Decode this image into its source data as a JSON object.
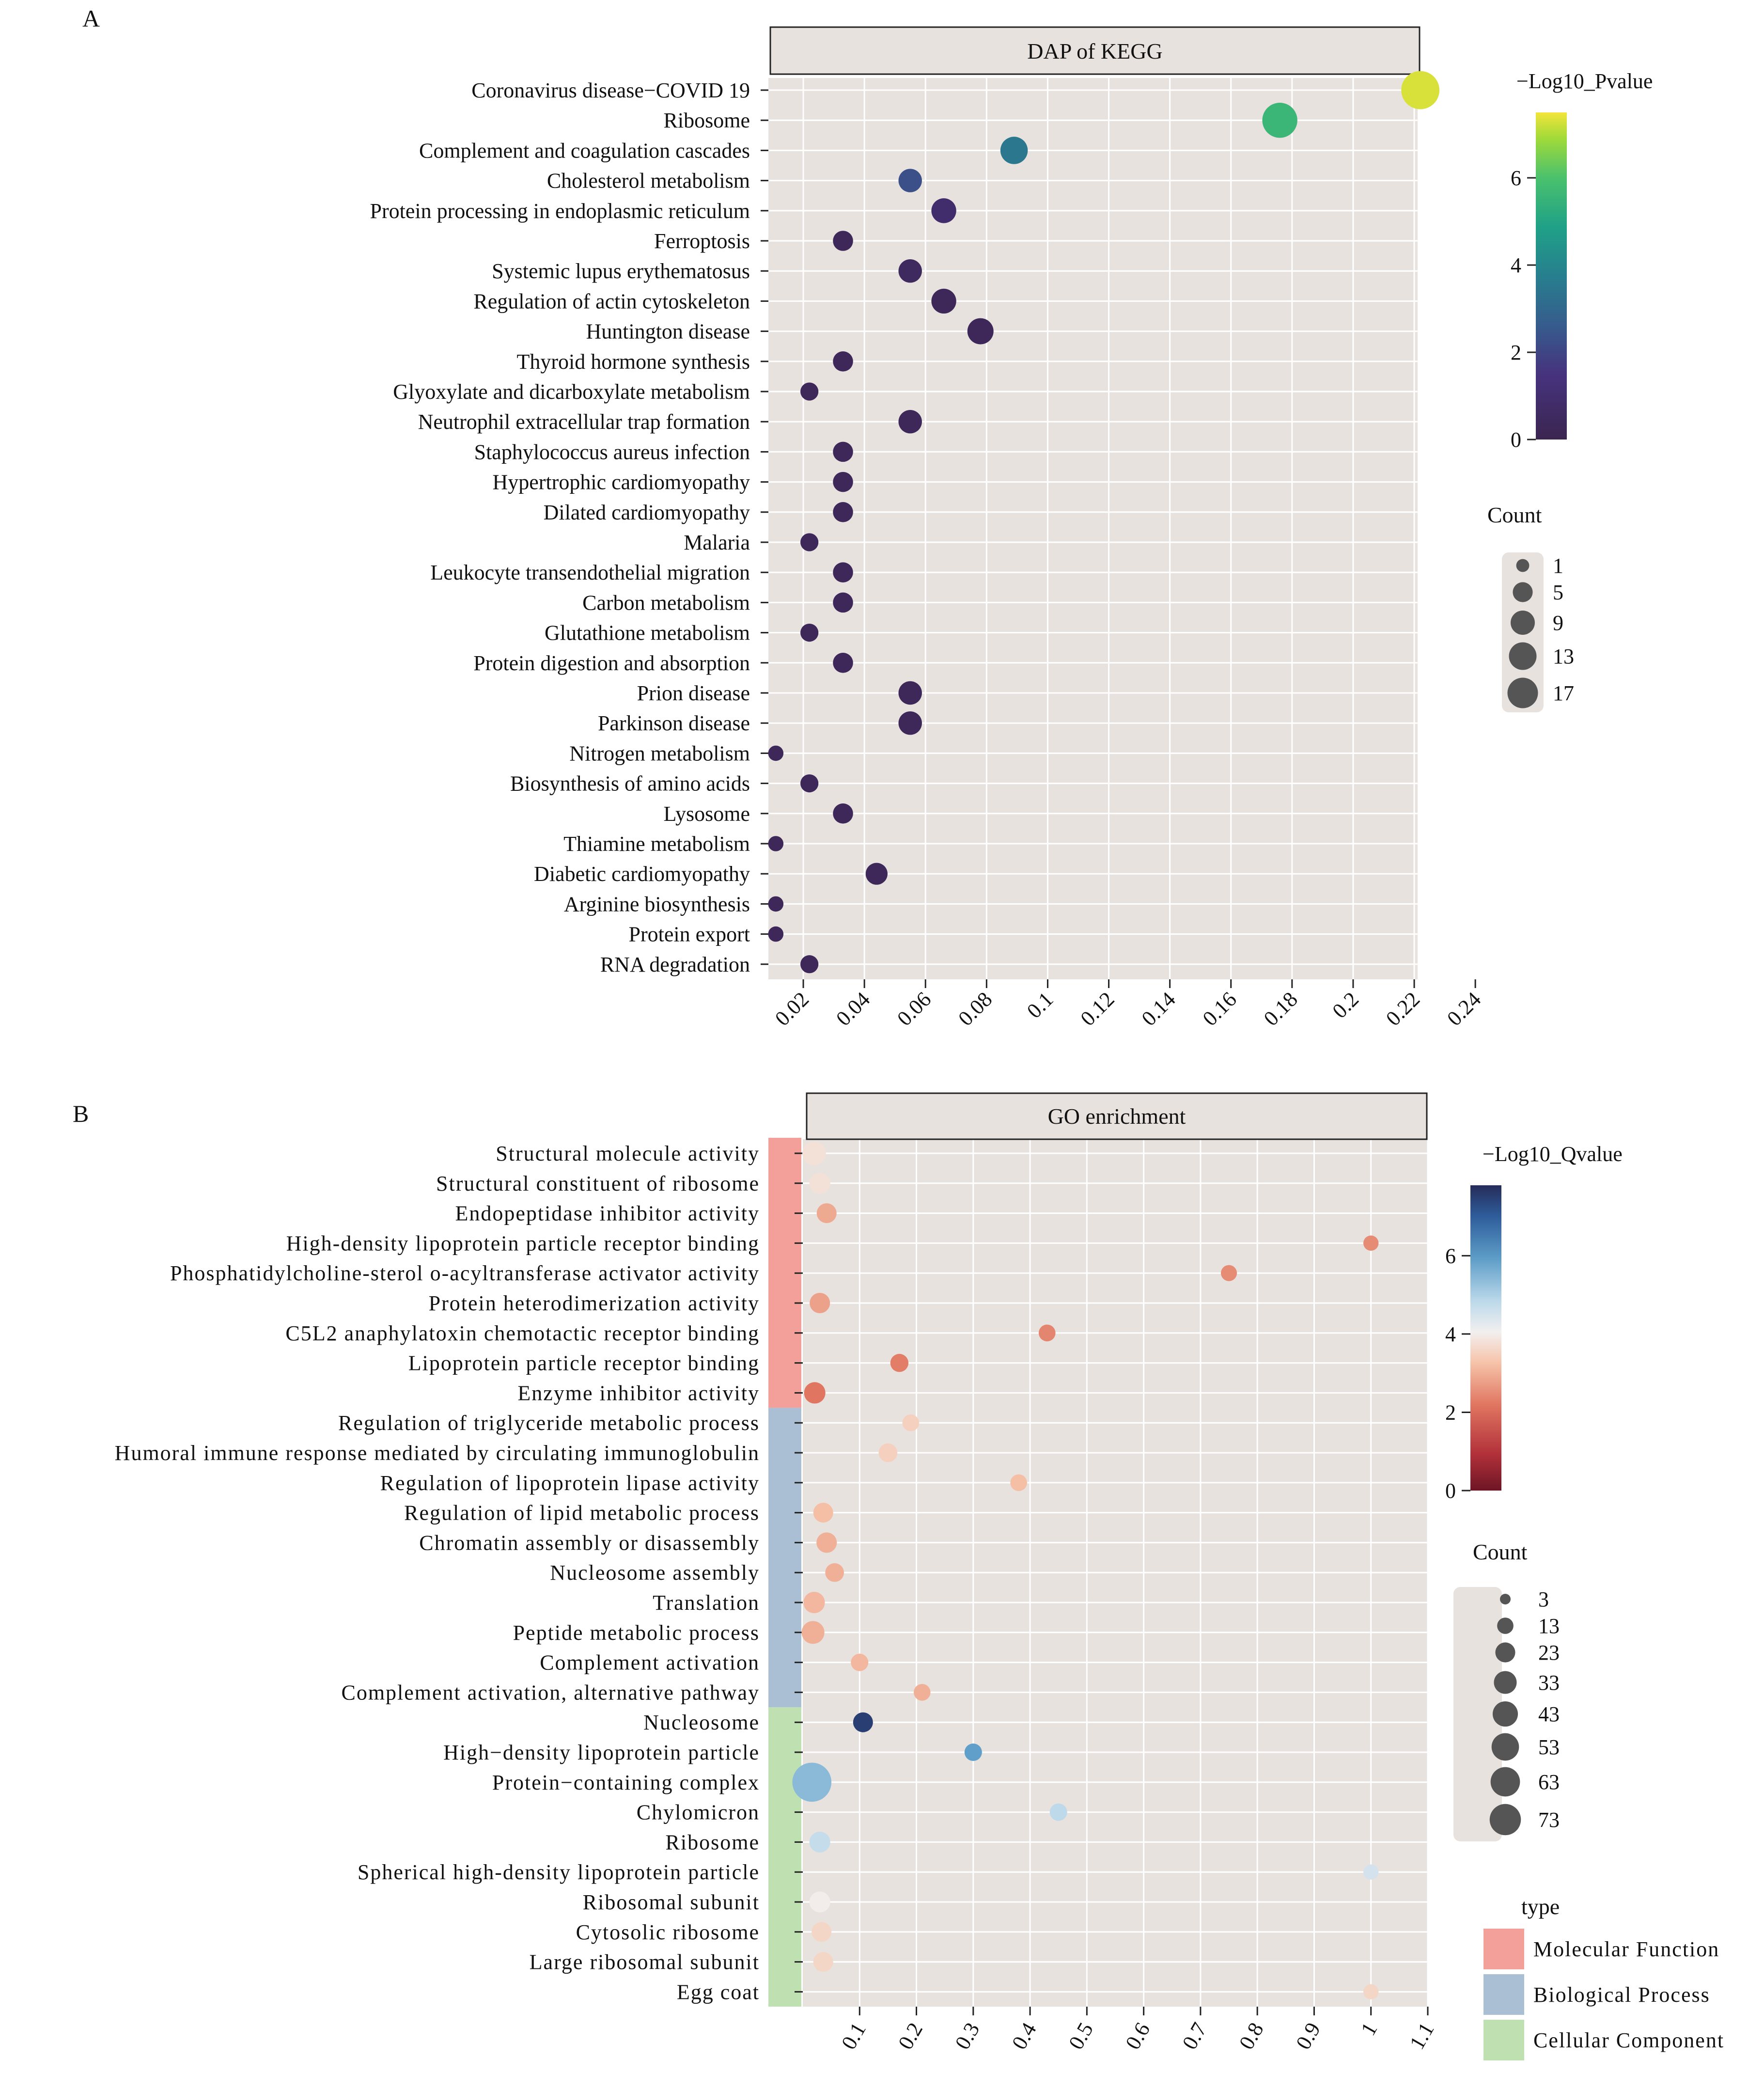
{
  "chart_data": [
    {
      "panel_label": "A",
      "type": "scatter",
      "title": "DAP of KEGG",
      "xlabel": "",
      "ylabel": "",
      "xlim": [
        0.01,
        0.24
      ],
      "xticks": [
        0.02,
        0.04,
        0.06,
        0.08,
        0.1,
        0.12,
        0.14,
        0.16,
        0.18,
        0.2,
        0.22,
        0.24
      ],
      "xtick_labels": [
        "0.02",
        "0.04",
        "0.06",
        "0.08",
        "0.1",
        "0.12",
        "0.14",
        "0.16",
        "0.18",
        "0.2",
        "0.22",
        "0.24"
      ],
      "categories": [
        "Coronavirus disease−COVID 19",
        "Ribosome",
        "Complement and coagulation cascades",
        "Cholesterol metabolism",
        "Protein processing in endoplasmic reticulum",
        "Ferroptosis",
        "Systemic lupus erythematosus",
        "Regulation of actin cytoskeleton",
        "Huntington disease",
        "Thyroid hormone synthesis",
        "Glyoxylate and dicarboxylate metabolism",
        "Neutrophil extracellular trap formation",
        "Staphylococcus aureus infection",
        "Hypertrophic cardiomyopathy",
        "Dilated cardiomyopathy",
        "Malaria",
        "Leukocyte transendothelial migration",
        "Carbon metabolism",
        "Glutathione metabolism",
        "Protein digestion and absorption",
        "Prion disease",
        "Parkinson disease",
        "Nitrogen metabolism",
        "Biosynthesis of amino acids",
        "Lysosome",
        "Thiamine metabolism",
        "Diabetic cardiomyopathy",
        "Arginine biosynthesis",
        "Protein export",
        "RNA degradation"
      ],
      "x": [
        0.222,
        0.176,
        0.089,
        0.055,
        0.066,
        0.033,
        0.055,
        0.066,
        0.078,
        0.033,
        0.022,
        0.055,
        0.033,
        0.033,
        0.033,
        0.022,
        0.033,
        0.033,
        0.022,
        0.033,
        0.055,
        0.055,
        0.011,
        0.022,
        0.033,
        0.011,
        0.044,
        0.011,
        0.011,
        0.022
      ],
      "count": [
        20,
        16,
        8,
        5,
        6,
        3,
        5,
        6,
        7,
        3,
        2,
        5,
        3,
        3,
        3,
        2,
        3,
        3,
        2,
        3,
        5,
        5,
        1,
        2,
        3,
        1,
        4,
        1,
        1,
        2
      ],
      "color_value": [
        7.3,
        5.6,
        3.5,
        2.3,
        0.9,
        0.3,
        0.5,
        0.3,
        0.3,
        0.3,
        0.3,
        0.3,
        0.3,
        0.3,
        0.3,
        0.3,
        0.3,
        0.3,
        0.3,
        0.3,
        0.3,
        0.3,
        0.3,
        0.3,
        0.3,
        0.3,
        0.3,
        0.3,
        0.3,
        0.3
      ],
      "colorbar": {
        "title": "−Log10_Pvalue",
        "range": [
          0,
          7.5
        ],
        "ticks": [
          0,
          2,
          4,
          6
        ],
        "tick_labels": [
          "0",
          "2",
          "4",
          "6"
        ],
        "colormap": "viridis"
      },
      "size_legend": {
        "title": "Count",
        "values": [
          1,
          5,
          9,
          13,
          17
        ],
        "labels": [
          "1",
          "5",
          "9",
          "13",
          "17"
        ]
      }
    },
    {
      "panel_label": "B",
      "type": "scatter",
      "title": "GO enrichment",
      "xlabel": "",
      "ylabel": "",
      "xlim": [
        0,
        1.1
      ],
      "xticks": [
        0.1,
        0.2,
        0.3,
        0.4,
        0.5,
        0.6,
        0.7,
        0.8,
        0.9,
        1,
        1.1
      ],
      "xtick_labels": [
        "0.1",
        "0.2",
        "0.3",
        "0.4",
        "0.5",
        "0.6",
        "0.7",
        "0.8",
        "0.9",
        "1",
        "1.1"
      ],
      "categories": [
        "Structural molecule activity",
        "Structural constituent of ribosome",
        "Endopeptidase inhibitor activity",
        "High-density lipoprotein particle receptor binding",
        "Phosphatidylcholine-sterol o-acyltransferase activator activity",
        "Protein heterodimerization activity",
        "C5L2 anaphylatoxin chemotactic receptor binding",
        "Lipoprotein particle receptor binding",
        "Enzyme inhibitor activity",
        "Regulation of triglyceride metabolic process",
        "Humoral immune response mediated by circulating immunoglobulin",
        "Regulation of lipoprotein lipase activity",
        "Regulation of lipid metabolic process",
        "Chromatin assembly or disassembly",
        "Nucleosome assembly",
        "Translation",
        "Peptide metabolic process",
        "Complement activation",
        "Complement activation, alternative pathway",
        "Nucleosome",
        "High−density lipoprotein particle",
        "Protein−containing complex",
        "Chylomicron",
        "Ribosome",
        "Spherical high-density lipoprotein particle",
        "Ribosomal subunit",
        "Cytosolic ribosome",
        "Large ribosomal subunit",
        "Egg coat"
      ],
      "category_type": [
        "MF",
        "MF",
        "MF",
        "MF",
        "MF",
        "MF",
        "MF",
        "MF",
        "MF",
        "BP",
        "BP",
        "BP",
        "BP",
        "BP",
        "BP",
        "BP",
        "BP",
        "BP",
        "BP",
        "CC",
        "CC",
        "CC",
        "CC",
        "CC",
        "CC",
        "CC",
        "CC",
        "CC",
        "CC"
      ],
      "x": [
        0.02,
        0.03,
        0.042,
        1.0,
        0.75,
        0.03,
        0.43,
        0.17,
        0.021,
        0.19,
        0.15,
        0.38,
        0.036,
        0.042,
        0.056,
        0.02,
        0.018,
        0.1,
        0.21,
        0.106,
        0.3,
        0.016,
        0.45,
        0.03,
        1.0,
        0.03,
        0.033,
        0.036,
        1.0
      ],
      "count": [
        20,
        14,
        12,
        5,
        6,
        13,
        7,
        9,
        15,
        7,
        10,
        7,
        12,
        13,
        10,
        15,
        18,
        8,
        7,
        12,
        8,
        73,
        8,
        14,
        5,
        14,
        12,
        12,
        5
      ],
      "color_value": [
        3.8,
        3.8,
        2.9,
        2.5,
        2.5,
        2.8,
        2.4,
        2.3,
        2.2,
        3.5,
        3.5,
        3.2,
        3.2,
        3.0,
        3.0,
        3.1,
        3.0,
        3.1,
        3.0,
        7.5,
        5.9,
        5.4,
        4.8,
        4.7,
        4.5,
        4.0,
        3.6,
        3.6,
        3.6
      ],
      "colorbar": {
        "title": "−Log10_Qvalue",
        "range": [
          0,
          7.8
        ],
        "ticks": [
          0,
          2,
          4,
          6
        ],
        "tick_labels": [
          "0",
          "2",
          "4",
          "6"
        ],
        "colormap": "RdBu"
      },
      "size_legend": {
        "title": "Count",
        "values": [
          3,
          13,
          23,
          33,
          43,
          53,
          63,
          73
        ],
        "labels": [
          "3",
          "13",
          "23",
          "33",
          "43",
          "53",
          "63",
          "73"
        ]
      },
      "type_legend": {
        "title": "type",
        "items": [
          {
            "key": "MF",
            "label": "Molecular Function",
            "color": "#f4a09a"
          },
          {
            "key": "BP",
            "label": "Biological Process",
            "color": "#aabfd4"
          },
          {
            "key": "CC",
            "label": "Cellular Component",
            "color": "#bfe0b0"
          }
        ]
      }
    }
  ]
}
